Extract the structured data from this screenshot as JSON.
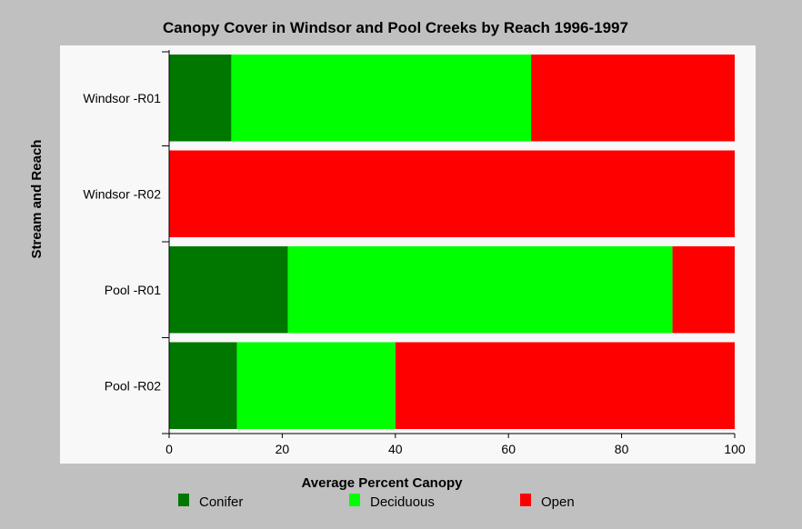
{
  "chart_data": {
    "type": "bar",
    "orientation": "horizontal",
    "stacked": true,
    "title": "Canopy Cover in Windsor and Pool Creeks by Reach 1996-1997",
    "xlabel": "Average Percent Canopy",
    "ylabel": "Stream and Reach",
    "xlim": [
      0,
      100
    ],
    "xticks": [
      "0",
      "20",
      "40",
      "60",
      "80",
      "100"
    ],
    "grid": false,
    "legend_position": "bottom",
    "categories": [
      "Windsor -R01",
      "Windsor -R02",
      "Pool -R01",
      "Pool -R02"
    ],
    "series": [
      {
        "name": "Conifer",
        "color": "#007800",
        "values": [
          11,
          0,
          21,
          12
        ]
      },
      {
        "name": "Deciduous",
        "color": "#00ff00",
        "values": [
          53,
          0,
          68,
          28
        ]
      },
      {
        "name": "Open",
        "color": "#ff0000",
        "values": [
          36,
          100,
          11,
          60
        ]
      }
    ]
  }
}
